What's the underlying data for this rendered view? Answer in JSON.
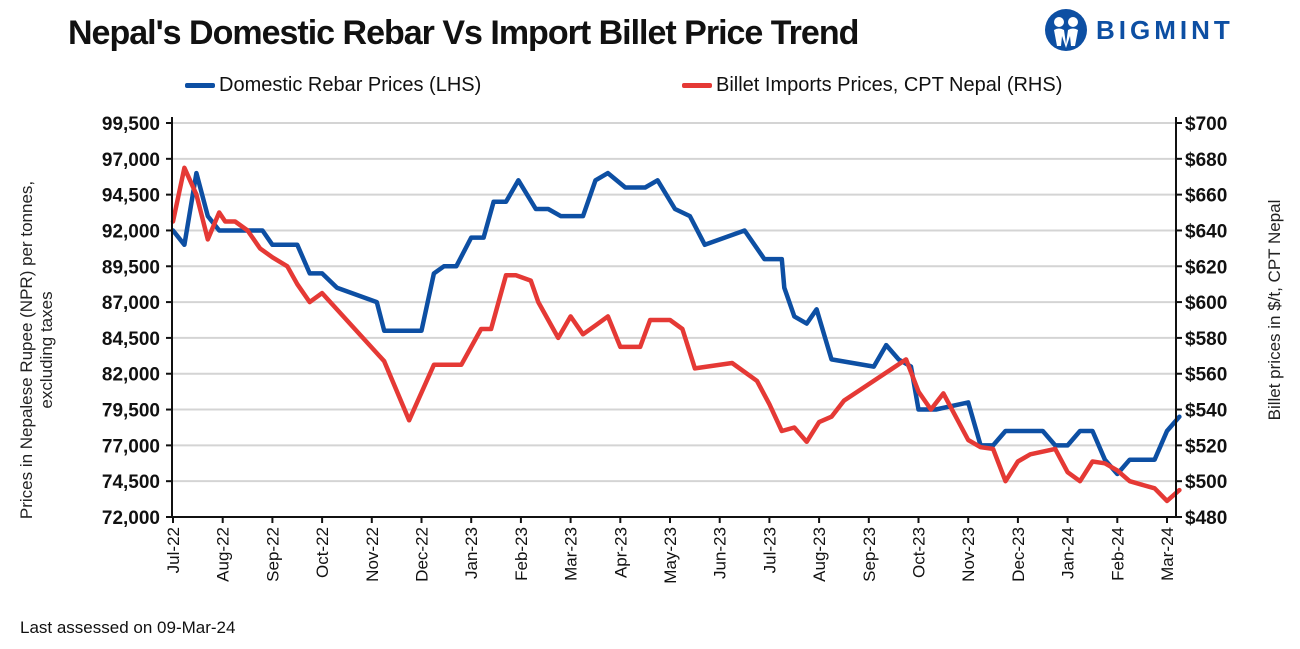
{
  "header": {
    "title": "Nepal's Domestic Rebar Vs Import Billet Price Trend",
    "logo_text": "BIGMINT",
    "logo_icon": "people-circle-icon",
    "brand_color": "#0d4fa3"
  },
  "footer": {
    "note": "Last assessed on 09-Mar-24"
  },
  "chart_data": {
    "type": "line",
    "title": "Nepal's Domestic Rebar Vs Import Billet Price Trend",
    "xlabel": "",
    "ylabel": "Prices in Nepalese Rupee (NPR) per tonnes, excluding taxes",
    "ylabel_lines": [
      "Prices in Nepalese Rupee (NPR) per tonnes,",
      "excluding taxes"
    ],
    "y2label": "Billet prices in $/t, CPT Nepal",
    "ylim": [
      72000,
      99500
    ],
    "y2lim": [
      480,
      700
    ],
    "yticks": [
      72000,
      74500,
      77000,
      79500,
      82000,
      84500,
      87000,
      89500,
      92000,
      94500,
      97000,
      99500
    ],
    "ytick_labels": [
      "72,000",
      "74,500",
      "77,000",
      "79,500",
      "82,000",
      "84,500",
      "87,000",
      "89,500",
      "92,000",
      "94,500",
      "97,000",
      "99,500"
    ],
    "y2ticks": [
      480,
      500,
      520,
      540,
      560,
      580,
      600,
      620,
      640,
      660,
      680,
      700
    ],
    "y2tick_labels": [
      "$480",
      "$500",
      "$520",
      "$540",
      "$560",
      "$580",
      "$600",
      "$620",
      "$640",
      "$660",
      "$680",
      "$700"
    ],
    "x_range": [
      0,
      20.25
    ],
    "xticks": [
      0,
      1,
      2,
      3,
      4,
      5,
      6,
      7,
      8,
      9,
      10,
      11,
      12,
      13,
      14,
      15,
      16,
      17,
      18,
      19,
      20
    ],
    "xtick_labels": [
      "Jul-22",
      "Aug-22",
      "Sep-22",
      "Oct-22",
      "Nov-22",
      "Dec-22",
      "Jan-23",
      "Feb-23",
      "Mar-23",
      "Apr-23",
      "May-23",
      "Jun-23",
      "Jul-23",
      "Aug-23",
      "Sep-23",
      "Oct-23",
      "Nov-23",
      "Dec-23",
      "Jan-24",
      "Feb-24",
      "Mar-24"
    ],
    "grid": true,
    "legend_position": "top",
    "series": [
      {
        "name": "Domestic Rebar Prices (LHS)",
        "axis": "left",
        "color": "#0d4fa3",
        "x": [
          0,
          0.23,
          0.47,
          0.7,
          0.93,
          1.0,
          1.5,
          1.8,
          2.0,
          2.5,
          2.75,
          3.0,
          3.3,
          4.1,
          4.25,
          4.5,
          5.0,
          5.25,
          5.45,
          5.7,
          6.0,
          6.25,
          6.45,
          6.7,
          6.95,
          7.3,
          7.55,
          7.8,
          8.25,
          8.5,
          8.75,
          9.1,
          9.5,
          9.75,
          10.1,
          10.4,
          10.7,
          11.5,
          11.9,
          12.25,
          12.3,
          12.5,
          12.75,
          12.95,
          13.25,
          14.1,
          14.35,
          14.6,
          14.85,
          15.0,
          15.2,
          15.35,
          16.0,
          16.25,
          16.5,
          16.75,
          17.0,
          17.25,
          17.5,
          17.75,
          18.0,
          18.25,
          18.5,
          18.75,
          19.0,
          19.25,
          19.5,
          19.75,
          20.0,
          20.25
        ],
        "y": [
          92000,
          91000,
          96000,
          93000,
          92000,
          92000,
          92000,
          92000,
          91000,
          91000,
          89000,
          89000,
          88000,
          87000,
          85000,
          85000,
          85000,
          89000,
          89500,
          89500,
          91500,
          91500,
          94000,
          94000,
          95500,
          93500,
          93500,
          93000,
          93000,
          95500,
          96000,
          95000,
          95000,
          95500,
          93500,
          93000,
          91000,
          92000,
          90000,
          90000,
          88000,
          86000,
          85500,
          86500,
          83000,
          82500,
          84000,
          83000,
          82500,
          79500,
          79500,
          79500,
          80000,
          77000,
          77000,
          78000,
          78000,
          78000,
          78000,
          77000,
          77000,
          78000,
          78000,
          76000,
          75000,
          76000,
          76000,
          76000,
          78000,
          79000
        ]
      },
      {
        "name": "Billet Imports Prices, CPT Nepal (RHS)",
        "axis": "right",
        "color": "#e53935",
        "x": [
          0,
          0.23,
          0.47,
          0.7,
          0.93,
          1.05,
          1.25,
          1.5,
          1.75,
          2.0,
          2.3,
          2.5,
          2.75,
          3.0,
          4.25,
          4.75,
          5.25,
          5.55,
          5.8,
          6.2,
          6.4,
          6.7,
          6.9,
          7.2,
          7.35,
          7.75,
          8.0,
          8.25,
          8.5,
          8.75,
          9.0,
          9.2,
          9.4,
          9.6,
          10.0,
          10.25,
          10.5,
          11.25,
          11.75,
          12.0,
          12.25,
          12.5,
          12.75,
          13.0,
          13.25,
          13.5,
          14.75,
          15.0,
          15.25,
          15.5,
          16.0,
          16.25,
          16.5,
          16.75,
          17.0,
          17.25,
          17.75,
          18.0,
          18.25,
          18.5,
          18.75,
          19.0,
          19.25,
          19.5,
          19.75,
          20.0,
          20.25
        ],
        "y": [
          645,
          675,
          660,
          635,
          650,
          645,
          645,
          640,
          630,
          625,
          620,
          610,
          600,
          605,
          567,
          534,
          565,
          565,
          565,
          585,
          585,
          615,
          615,
          612,
          600,
          580,
          592,
          582,
          587,
          592,
          575,
          575,
          575,
          590,
          590,
          585,
          563,
          566,
          556,
          543,
          528,
          530,
          522,
          533,
          536,
          545,
          568,
          550,
          540,
          549,
          523,
          519,
          518,
          500,
          511,
          515,
          518,
          505,
          500,
          511,
          510,
          506,
          500,
          498,
          496,
          489,
          495
        ]
      }
    ]
  }
}
